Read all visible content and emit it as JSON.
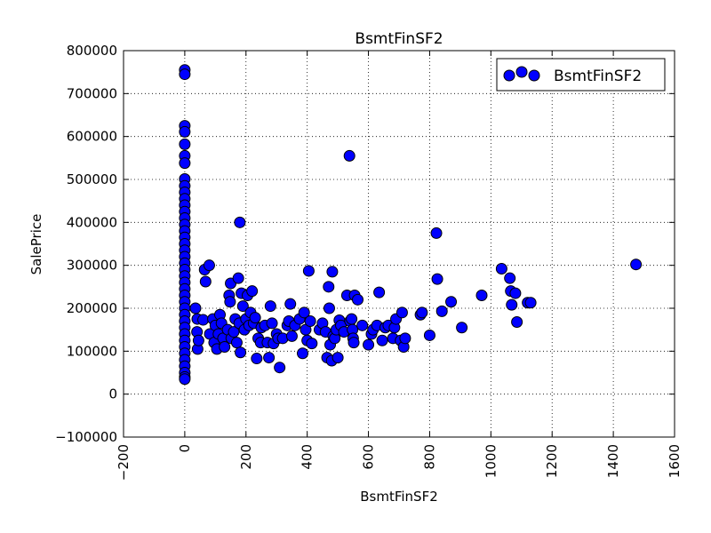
{
  "chart_data": {
    "type": "scatter",
    "title": "BsmtFinSF2",
    "xlabel": "BsmtFinSF2",
    "ylabel": "SalePrice",
    "xlim": [
      -200,
      1600
    ],
    "ylim": [
      -100000,
      800000
    ],
    "x_ticks": [
      -200,
      0,
      200,
      400,
      600,
      800,
      1000,
      1200,
      1400,
      1600
    ],
    "x_tick_labels": [
      "−200",
      "0",
      "200",
      "400",
      "600",
      "800",
      "1000",
      "1200",
      "1400",
      "1600"
    ],
    "y_ticks": [
      -100000,
      0,
      100000,
      200000,
      300000,
      400000,
      500000,
      600000,
      700000,
      800000
    ],
    "y_tick_labels": [
      "−100000",
      "0",
      "100000",
      "200000",
      "300000",
      "400000",
      "500000",
      "600000",
      "700000",
      "800000"
    ],
    "grid": true,
    "legend_position": "top-right",
    "marker_color": "#0000ff",
    "series": [
      {
        "name": "BsmtFinSF2",
        "points": [
          [
            0,
            755000
          ],
          [
            0,
            745000
          ],
          [
            0,
            625000
          ],
          [
            0,
            611000
          ],
          [
            0,
            582000
          ],
          [
            0,
            555000
          ],
          [
            0,
            538000
          ],
          [
            0,
            501000
          ],
          [
            0,
            485000
          ],
          [
            0,
            470000
          ],
          [
            0,
            455000
          ],
          [
            0,
            440000
          ],
          [
            0,
            425000
          ],
          [
            0,
            410000
          ],
          [
            0,
            395000
          ],
          [
            0,
            380000
          ],
          [
            0,
            365000
          ],
          [
            0,
            350000
          ],
          [
            0,
            335000
          ],
          [
            0,
            320000
          ],
          [
            0,
            305000
          ],
          [
            0,
            290000
          ],
          [
            0,
            275000
          ],
          [
            0,
            260000
          ],
          [
            0,
            245000
          ],
          [
            0,
            230000
          ],
          [
            0,
            215000
          ],
          [
            0,
            200000
          ],
          [
            0,
            185000
          ],
          [
            0,
            170000
          ],
          [
            0,
            155000
          ],
          [
            0,
            140000
          ],
          [
            0,
            125000
          ],
          [
            0,
            110000
          ],
          [
            0,
            95000
          ],
          [
            0,
            80000
          ],
          [
            0,
            65000
          ],
          [
            0,
            50000
          ],
          [
            0,
            40000
          ],
          [
            0,
            35000
          ],
          [
            35,
            200000
          ],
          [
            40,
            145000
          ],
          [
            41,
            175000
          ],
          [
            42,
            105000
          ],
          [
            45,
            125000
          ],
          [
            60,
            173000
          ],
          [
            65,
            290000
          ],
          [
            68,
            262000
          ],
          [
            80,
            300000
          ],
          [
            82,
            140000
          ],
          [
            92,
            175000
          ],
          [
            96,
            120000
          ],
          [
            100,
            160000
          ],
          [
            105,
            105000
          ],
          [
            110,
            140000
          ],
          [
            115,
            185000
          ],
          [
            120,
            165000
          ],
          [
            125,
            130000
          ],
          [
            130,
            110000
          ],
          [
            140,
            150000
          ],
          [
            145,
            230000
          ],
          [
            148,
            215000
          ],
          [
            150,
            258000
          ],
          [
            152,
            130000
          ],
          [
            160,
            145000
          ],
          [
            165,
            175000
          ],
          [
            170,
            120000
          ],
          [
            175,
            270000
          ],
          [
            178,
            165000
          ],
          [
            180,
            400000
          ],
          [
            182,
            97000
          ],
          [
            185,
            235000
          ],
          [
            190,
            205000
          ],
          [
            195,
            150000
          ],
          [
            200,
            175000
          ],
          [
            205,
            230000
          ],
          [
            210,
            160000
          ],
          [
            215,
            190000
          ],
          [
            220,
            240000
          ],
          [
            225,
            165000
          ],
          [
            230,
            178000
          ],
          [
            235,
            83000
          ],
          [
            240,
            130000
          ],
          [
            248,
            120000
          ],
          [
            250,
            155000
          ],
          [
            262,
            160000
          ],
          [
            270,
            120000
          ],
          [
            275,
            85000
          ],
          [
            280,
            205000
          ],
          [
            285,
            165000
          ],
          [
            290,
            118000
          ],
          [
            300,
            140000
          ],
          [
            305,
            130000
          ],
          [
            310,
            62000
          ],
          [
            320,
            130000
          ],
          [
            335,
            160000
          ],
          [
            340,
            170000
          ],
          [
            345,
            210000
          ],
          [
            350,
            135000
          ],
          [
            360,
            160000
          ],
          [
            375,
            175000
          ],
          [
            385,
            95000
          ],
          [
            390,
            190000
          ],
          [
            395,
            150000
          ],
          [
            400,
            125000
          ],
          [
            405,
            287000
          ],
          [
            410,
            170000
          ],
          [
            415,
            118000
          ],
          [
            440,
            150000
          ],
          [
            450,
            165000
          ],
          [
            460,
            145000
          ],
          [
            465,
            85000
          ],
          [
            470,
            250000
          ],
          [
            472,
            200000
          ],
          [
            475,
            115000
          ],
          [
            480,
            78000
          ],
          [
            482,
            285000
          ],
          [
            485,
            135000
          ],
          [
            490,
            130000
          ],
          [
            495,
            150000
          ],
          [
            500,
            85000
          ],
          [
            505,
            172000
          ],
          [
            510,
            160000
          ],
          [
            520,
            145000
          ],
          [
            530,
            230000
          ],
          [
            538,
            555000
          ],
          [
            540,
            170000
          ],
          [
            545,
            175000
          ],
          [
            548,
            150000
          ],
          [
            550,
            130000
          ],
          [
            552,
            120000
          ],
          [
            555,
            230000
          ],
          [
            565,
            220000
          ],
          [
            580,
            160000
          ],
          [
            600,
            115000
          ],
          [
            610,
            140000
          ],
          [
            615,
            150000
          ],
          [
            628,
            160000
          ],
          [
            635,
            237000
          ],
          [
            645,
            125000
          ],
          [
            655,
            155000
          ],
          [
            665,
            160000
          ],
          [
            680,
            130000
          ],
          [
            685,
            155000
          ],
          [
            690,
            175000
          ],
          [
            705,
            125000
          ],
          [
            710,
            190000
          ],
          [
            715,
            110000
          ],
          [
            720,
            130000
          ],
          [
            770,
            185000
          ],
          [
            775,
            190000
          ],
          [
            800,
            137000
          ],
          [
            822,
            375000
          ],
          [
            825,
            268000
          ],
          [
            840,
            193000
          ],
          [
            870,
            215000
          ],
          [
            905,
            155000
          ],
          [
            970,
            230000
          ],
          [
            1035,
            292000
          ],
          [
            1062,
            270000
          ],
          [
            1065,
            240000
          ],
          [
            1068,
            208000
          ],
          [
            1080,
            235000
          ],
          [
            1085,
            168000
          ],
          [
            1120,
            213000
          ],
          [
            1130,
            213000
          ],
          [
            1474,
            302000
          ]
        ]
      }
    ]
  }
}
